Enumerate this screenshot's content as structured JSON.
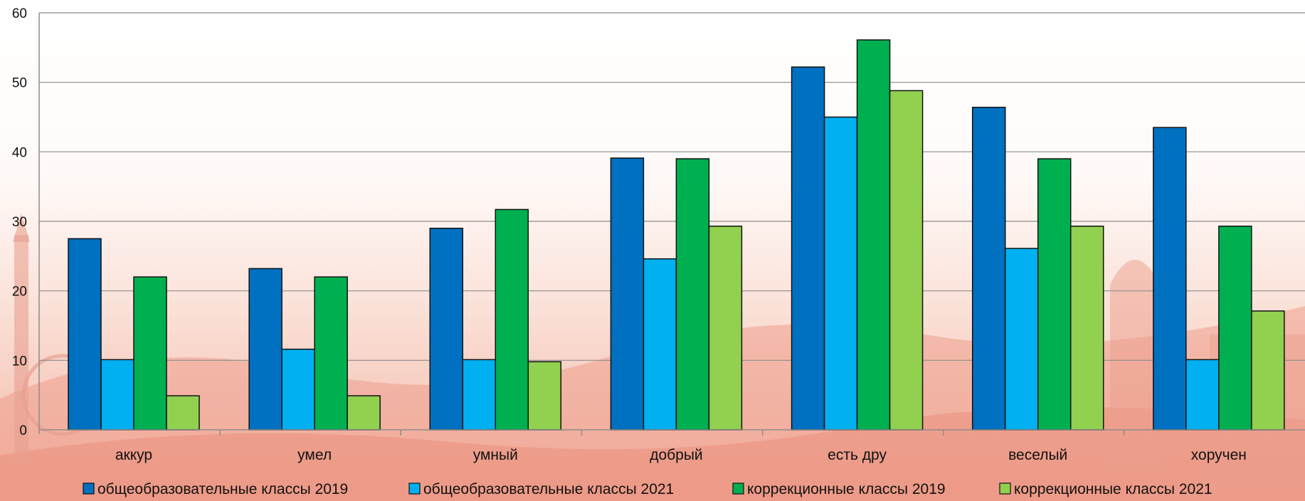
{
  "chart_data": {
    "type": "bar",
    "categories": [
      "аккур",
      "умел",
      "умный",
      "добрый",
      "есть дру",
      "веселый",
      "хоручен"
    ],
    "series": [
      {
        "name": "общеобразовательные классы 2019",
        "color": "#0070C0",
        "values": [
          27.5,
          23.2,
          29.0,
          39.1,
          52.2,
          46.4,
          43.5
        ]
      },
      {
        "name": "общеобразовательные классы 2021",
        "color": "#00B0F0",
        "values": [
          10.1,
          11.6,
          10.1,
          24.6,
          45.0,
          26.1,
          10.1
        ]
      },
      {
        "name": "коррекционные классы 2019",
        "color": "#00B050",
        "values": [
          22.0,
          22.0,
          31.7,
          39.0,
          56.1,
          39.0,
          29.3
        ]
      },
      {
        "name": "коррекционные классы 2021",
        "color": "#92D050",
        "values": [
          4.9,
          4.9,
          9.8,
          29.3,
          48.8,
          29.3,
          17.1
        ]
      }
    ],
    "ylim": [
      0,
      60
    ],
    "yticks": [
      "0",
      "10",
      "20",
      "30",
      "40",
      "50",
      "60"
    ],
    "grid": true,
    "legend_position": "bottom"
  }
}
